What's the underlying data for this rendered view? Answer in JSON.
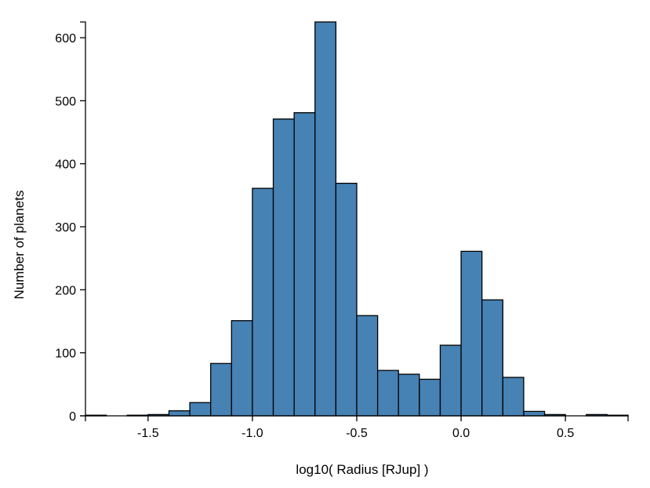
{
  "chart_data": {
    "type": "bar",
    "title": "",
    "xlabel": "log10( Radius [RJup] )",
    "ylabel": "Number of planets",
    "xlim": [
      -1.8,
      0.8
    ],
    "ylim": [
      0,
      625
    ],
    "bin_width": 0.1,
    "x_ticks": [
      {
        "value": -1.5,
        "label": "-1.5"
      },
      {
        "value": -1.0,
        "label": "-1.0"
      },
      {
        "value": -0.5,
        "label": "-0.5"
      },
      {
        "value": 0.0,
        "label": "0.0"
      },
      {
        "value": 0.5,
        "label": "0.5"
      }
    ],
    "y_ticks": [
      {
        "value": 0,
        "label": "0"
      },
      {
        "value": 100,
        "label": "100"
      },
      {
        "value": 200,
        "label": "200"
      },
      {
        "value": 300,
        "label": "300"
      },
      {
        "value": 400,
        "label": "400"
      },
      {
        "value": 500,
        "label": "500"
      },
      {
        "value": 600,
        "label": "600"
      }
    ],
    "bins": [
      {
        "x0": -1.8,
        "x1": -1.7,
        "count": 1
      },
      {
        "x0": -1.7,
        "x1": -1.6,
        "count": 0
      },
      {
        "x0": -1.6,
        "x1": -1.5,
        "count": 1
      },
      {
        "x0": -1.5,
        "x1": -1.4,
        "count": 2
      },
      {
        "x0": -1.4,
        "x1": -1.3,
        "count": 8
      },
      {
        "x0": -1.3,
        "x1": -1.2,
        "count": 21
      },
      {
        "x0": -1.2,
        "x1": -1.1,
        "count": 83
      },
      {
        "x0": -1.1,
        "x1": -1.0,
        "count": 151
      },
      {
        "x0": -1.0,
        "x1": -0.9,
        "count": 361
      },
      {
        "x0": -0.9,
        "x1": -0.8,
        "count": 471
      },
      {
        "x0": -0.8,
        "x1": -0.7,
        "count": 481
      },
      {
        "x0": -0.7,
        "x1": -0.6,
        "count": 625
      },
      {
        "x0": -0.6,
        "x1": -0.5,
        "count": 369
      },
      {
        "x0": -0.5,
        "x1": -0.4,
        "count": 159
      },
      {
        "x0": -0.4,
        "x1": -0.3,
        "count": 72
      },
      {
        "x0": -0.3,
        "x1": -0.2,
        "count": 66
      },
      {
        "x0": -0.2,
        "x1": -0.1,
        "count": 58
      },
      {
        "x0": -0.1,
        "x1": 0.0,
        "count": 112
      },
      {
        "x0": 0.0,
        "x1": 0.1,
        "count": 261
      },
      {
        "x0": 0.1,
        "x1": 0.2,
        "count": 184
      },
      {
        "x0": 0.2,
        "x1": 0.3,
        "count": 61
      },
      {
        "x0": 0.3,
        "x1": 0.4,
        "count": 7
      },
      {
        "x0": 0.4,
        "x1": 0.5,
        "count": 2
      },
      {
        "x0": 0.5,
        "x1": 0.6,
        "count": 0
      },
      {
        "x0": 0.6,
        "x1": 0.7,
        "count": 2
      },
      {
        "x0": 0.7,
        "x1": 0.8,
        "count": 1
      }
    ],
    "grid": false
  }
}
